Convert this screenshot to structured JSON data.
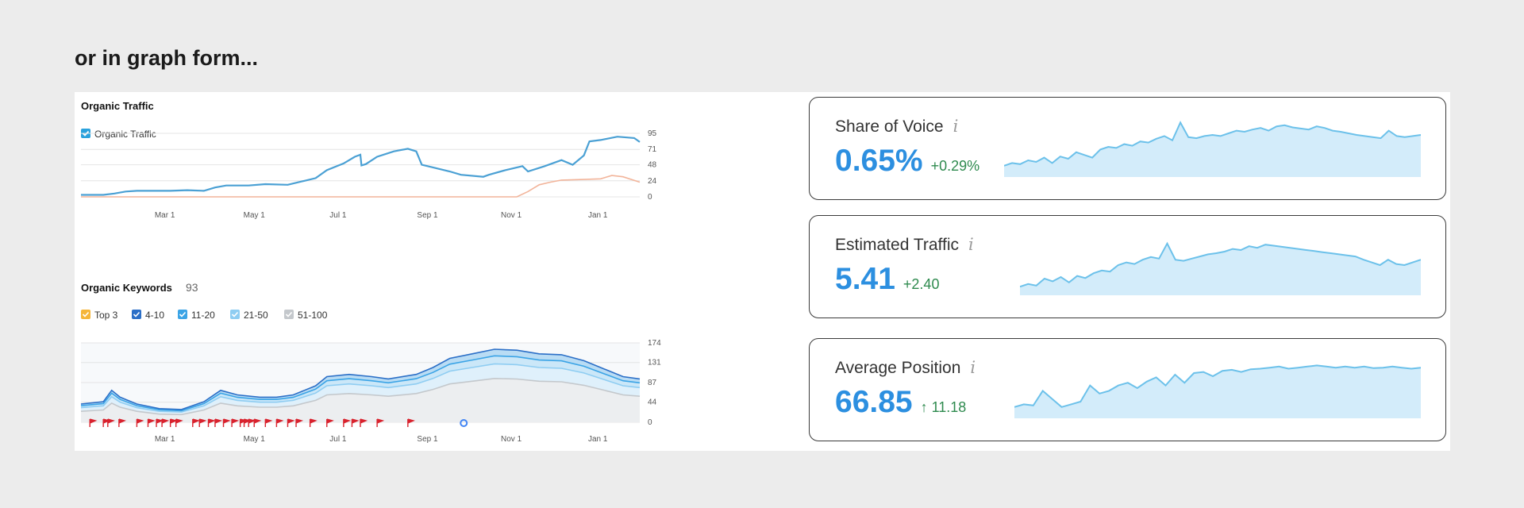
{
  "heading": "or in graph form...",
  "chart_data": [
    {
      "type": "line",
      "title": "Organic Traffic",
      "legend": [
        "Organic Traffic"
      ],
      "xticks": [
        "Mar 1",
        "May 1",
        "Jul 1",
        "Sep 1",
        "Nov 1",
        "Jan 1"
      ],
      "yticks": [
        0,
        24,
        48,
        71,
        95
      ],
      "ylim": [
        0,
        95
      ],
      "series": [
        {
          "name": "Organic Traffic",
          "color": "#4aa0d4",
          "points": [
            [
              0,
              3
            ],
            [
              0.04,
              3
            ],
            [
              0.06,
              5
            ],
            [
              0.08,
              8
            ],
            [
              0.1,
              9
            ],
            [
              0.13,
              9
            ],
            [
              0.16,
              9
            ],
            [
              0.19,
              10
            ],
            [
              0.22,
              9
            ],
            [
              0.24,
              14
            ],
            [
              0.26,
              17
            ],
            [
              0.3,
              17
            ],
            [
              0.33,
              19
            ],
            [
              0.37,
              18
            ],
            [
              0.4,
              24
            ],
            [
              0.42,
              28
            ],
            [
              0.44,
              40
            ],
            [
              0.47,
              50
            ],
            [
              0.49,
              60
            ],
            [
              0.5,
              63
            ],
            [
              0.502,
              47
            ],
            [
              0.51,
              49
            ],
            [
              0.53,
              60
            ],
            [
              0.56,
              68
            ],
            [
              0.585,
              72
            ],
            [
              0.6,
              68
            ],
            [
              0.61,
              48
            ],
            [
              0.63,
              44
            ],
            [
              0.66,
              38
            ],
            [
              0.68,
              33
            ],
            [
              0.72,
              30
            ],
            [
              0.73,
              33
            ],
            [
              0.76,
              40
            ],
            [
              0.79,
              46
            ],
            [
              0.8,
              38
            ],
            [
              0.83,
              46
            ],
            [
              0.86,
              55
            ],
            [
              0.88,
              48
            ],
            [
              0.9,
              62
            ],
            [
              0.91,
              83
            ],
            [
              0.93,
              85
            ],
            [
              0.96,
              90
            ],
            [
              0.99,
              88
            ],
            [
              1.0,
              82
            ]
          ]
        },
        {
          "name": "",
          "color": "#f2b49a",
          "points": [
            [
              0,
              0
            ],
            [
              0.7,
              0
            ],
            [
              0.78,
              0
            ],
            [
              0.8,
              8
            ],
            [
              0.82,
              18
            ],
            [
              0.84,
              22
            ],
            [
              0.86,
              25
            ],
            [
              0.9,
              26
            ],
            [
              0.93,
              27
            ],
            [
              0.95,
              32
            ],
            [
              0.97,
              30
            ],
            [
              1.0,
              22
            ]
          ]
        }
      ]
    },
    {
      "type": "area",
      "title": "Organic Keywords",
      "count": "93",
      "legend": [
        {
          "label": "Top 3",
          "color": "#f5b63a"
        },
        {
          "label": "4-10",
          "color": "#2b6fc7"
        },
        {
          "label": "11-20",
          "color": "#3ba4e6"
        },
        {
          "label": "21-50",
          "color": "#8fcdf2"
        },
        {
          "label": "51-100",
          "color": "#c4c8cc"
        }
      ],
      "xticks": [
        "Mar 1",
        "May 1",
        "Jul 1",
        "Sep 1",
        "Nov 1",
        "Jan 1"
      ],
      "yticks": [
        0,
        44,
        87,
        131,
        174
      ],
      "ylim": [
        0,
        174
      ],
      "top_series": [
        [
          0,
          40
        ],
        [
          0.04,
          45
        ],
        [
          0.055,
          70
        ],
        [
          0.07,
          55
        ],
        [
          0.1,
          40
        ],
        [
          0.14,
          30
        ],
        [
          0.18,
          28
        ],
        [
          0.22,
          45
        ],
        [
          0.25,
          70
        ],
        [
          0.28,
          60
        ],
        [
          0.32,
          55
        ],
        [
          0.35,
          55
        ],
        [
          0.38,
          60
        ],
        [
          0.42,
          80
        ],
        [
          0.44,
          100
        ],
        [
          0.48,
          105
        ],
        [
          0.52,
          100
        ],
        [
          0.55,
          95
        ],
        [
          0.6,
          105
        ],
        [
          0.63,
          120
        ],
        [
          0.66,
          140
        ],
        [
          0.7,
          150
        ],
        [
          0.74,
          160
        ],
        [
          0.78,
          158
        ],
        [
          0.82,
          150
        ],
        [
          0.86,
          148
        ],
        [
          0.9,
          135
        ],
        [
          0.94,
          115
        ],
        [
          0.97,
          100
        ],
        [
          1.0,
          95
        ]
      ]
    },
    {
      "type": "area",
      "title": "Share of Voice",
      "value": "0.65%",
      "delta": "+0.29%"
    },
    {
      "type": "area",
      "title": "Estimated Traffic",
      "value": "5.41",
      "delta": "+2.40"
    },
    {
      "type": "area",
      "title": "Average Position",
      "value": "66.85",
      "delta": "↑ 11.18"
    }
  ],
  "sparklines": {
    "sov": [
      0.15,
      0.2,
      0.18,
      0.25,
      0.22,
      0.3,
      0.2,
      0.32,
      0.28,
      0.4,
      0.35,
      0.3,
      0.45,
      0.5,
      0.48,
      0.55,
      0.52,
      0.6,
      0.58,
      0.65,
      0.7,
      0.62,
      0.95,
      0.68,
      0.66,
      0.7,
      0.72,
      0.7,
      0.75,
      0.8,
      0.78,
      0.82,
      0.85,
      0.8,
      0.88,
      0.9,
      0.86,
      0.84,
      0.82,
      0.88,
      0.85,
      0.8,
      0.78,
      0.75,
      0.72,
      0.7,
      0.68,
      0.66,
      0.8,
      0.7,
      0.68,
      0.7,
      0.72
    ],
    "traffic": [
      0.1,
      0.15,
      0.12,
      0.25,
      0.2,
      0.28,
      0.18,
      0.3,
      0.26,
      0.35,
      0.4,
      0.38,
      0.5,
      0.55,
      0.52,
      0.6,
      0.65,
      0.62,
      0.9,
      0.6,
      0.58,
      0.62,
      0.66,
      0.7,
      0.72,
      0.75,
      0.8,
      0.78,
      0.85,
      0.82,
      0.88,
      0.86,
      0.84,
      0.82,
      0.8,
      0.78,
      0.76,
      0.74,
      0.72,
      0.7,
      0.68,
      0.66,
      0.6,
      0.55,
      0.5,
      0.6,
      0.52,
      0.5,
      0.55,
      0.6
    ],
    "position": [
      0.15,
      0.2,
      0.18,
      0.45,
      0.3,
      0.15,
      0.2,
      0.25,
      0.55,
      0.4,
      0.45,
      0.55,
      0.6,
      0.5,
      0.62,
      0.7,
      0.55,
      0.75,
      0.6,
      0.78,
      0.8,
      0.72,
      0.82,
      0.84,
      0.8,
      0.85,
      0.86,
      0.88,
      0.9,
      0.86,
      0.88,
      0.9,
      0.92,
      0.9,
      0.88,
      0.9,
      0.88,
      0.9,
      0.87,
      0.88,
      0.9,
      0.88,
      0.86,
      0.88
    ]
  }
}
